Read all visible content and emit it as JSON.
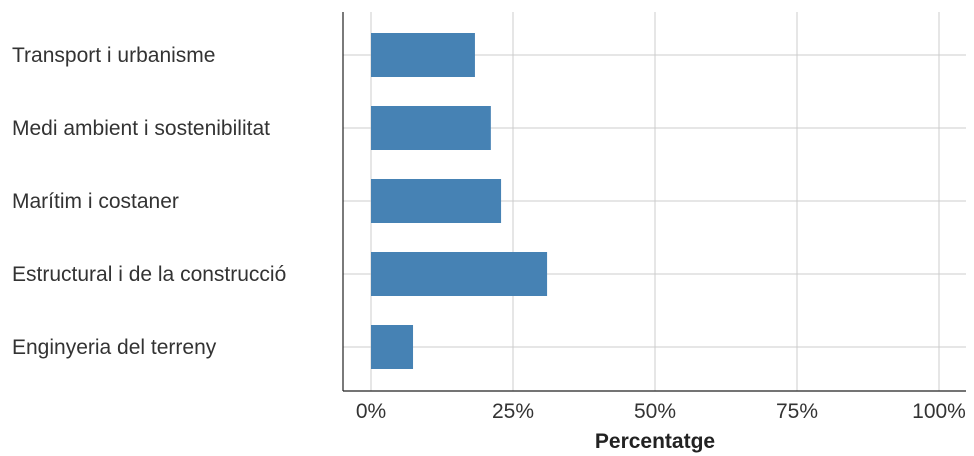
{
  "chart_data": {
    "type": "bar",
    "orientation": "horizontal",
    "categories": [
      "Transport i urbanisme",
      "Medi ambient i sostenibilitat",
      "Marítim i costaner",
      "Estructural i de la construcció",
      "Enginyeria del terreny"
    ],
    "values": [
      18.3,
      21.1,
      22.9,
      31.0,
      7.4
    ],
    "xlabel": "Percentatge",
    "ylabel": "",
    "title": "",
    "xlim": [
      0,
      100
    ],
    "xticks": [
      0,
      25,
      50,
      75,
      100
    ],
    "xtick_labels": [
      "0%",
      "25%",
      "50%",
      "75%",
      "100%"
    ],
    "grid": true,
    "legend": "none",
    "bar_color": "#4682b4"
  }
}
